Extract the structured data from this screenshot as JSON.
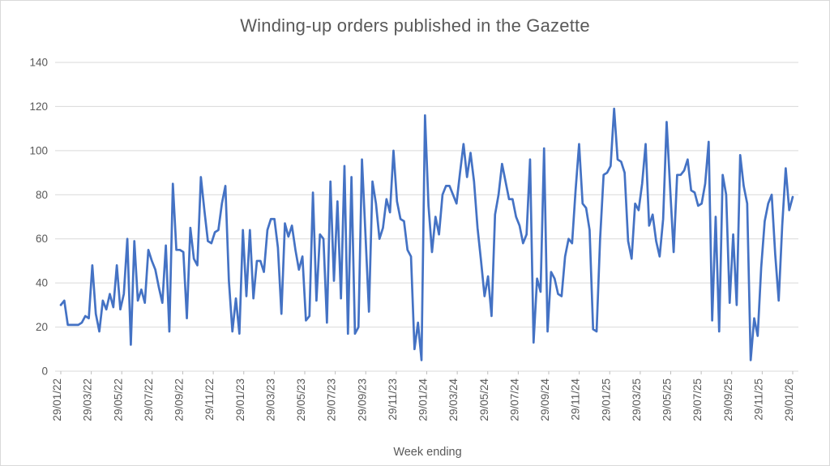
{
  "title": "Winding-up orders published in the Gazette",
  "xaxis_title": "Week ending",
  "chart_data": {
    "type": "line",
    "title": "Winding-up orders published in the Gazette",
    "xlabel": "Week ending",
    "ylabel": "",
    "ylim": [
      0,
      140
    ],
    "y_ticks": [
      0,
      20,
      40,
      60,
      80,
      100,
      120,
      140
    ],
    "grid": "horizontal",
    "legend": "none",
    "line_color": "#4472C4",
    "grid_color": "#d9d9d9",
    "text_color": "#595959",
    "x_tick_labels": [
      "29/01/22",
      "29/03/22",
      "29/05/22",
      "29/07/22",
      "29/09/22",
      "29/11/22",
      "29/01/23",
      "29/03/23",
      "29/05/23",
      "29/07/23",
      "29/09/23",
      "29/11/23",
      "29/01/24",
      "29/03/24",
      "29/05/24",
      "29/07/24",
      "29/09/24",
      "29/11/24",
      "29/01/25",
      "29/03/25",
      "29/05/25",
      "29/07/25",
      "29/09/25",
      "29/11/25",
      "29/01/26"
    ],
    "x_description": "Weekly data points, week ending 29/01/22 through 29/01/26",
    "values": [
      30,
      32,
      21,
      21,
      21,
      21,
      22,
      25,
      24,
      48,
      26,
      18,
      32,
      28,
      35,
      29,
      48,
      28,
      35,
      60,
      12,
      59,
      32,
      37,
      31,
      55,
      50,
      46,
      38,
      31,
      57,
      18,
      85,
      55,
      55,
      54,
      24,
      65,
      51,
      48,
      88,
      73,
      59,
      58,
      63,
      64,
      76,
      84,
      41,
      18,
      33,
      17,
      64,
      34,
      64,
      33,
      50,
      50,
      45,
      64,
      69,
      69,
      56,
      26,
      67,
      61,
      66,
      55,
      46,
      52,
      23,
      25,
      81,
      32,
      62,
      60,
      22,
      86,
      41,
      77,
      33,
      93,
      17,
      88,
      17,
      20,
      96,
      62,
      27,
      86,
      76,
      60,
      65,
      78,
      72,
      100,
      77,
      69,
      68,
      55,
      52,
      10,
      22,
      5,
      116,
      75,
      54,
      70,
      62,
      80,
      84,
      84,
      80,
      76,
      90,
      103,
      88,
      99,
      86,
      65,
      50,
      34,
      43,
      25,
      71,
      80,
      94,
      86,
      78,
      78,
      70,
      66,
      58,
      62,
      96,
      13,
      42,
      36,
      101,
      18,
      45,
      42,
      35,
      34,
      52,
      60,
      58,
      82,
      103,
      76,
      74,
      64,
      19,
      18,
      60,
      89,
      90,
      93,
      119,
      96,
      95,
      90,
      59,
      51,
      76,
      73,
      85,
      103,
      66,
      71,
      59,
      52,
      69,
      113,
      83,
      54,
      89,
      89,
      91,
      96,
      82,
      81,
      75,
      76,
      85,
      104,
      23,
      70,
      18,
      89,
      80,
      31,
      62,
      30,
      98,
      84,
      76,
      5,
      24,
      16,
      47,
      68,
      76,
      80,
      53,
      32,
      66,
      92,
      73,
      79
    ]
  }
}
